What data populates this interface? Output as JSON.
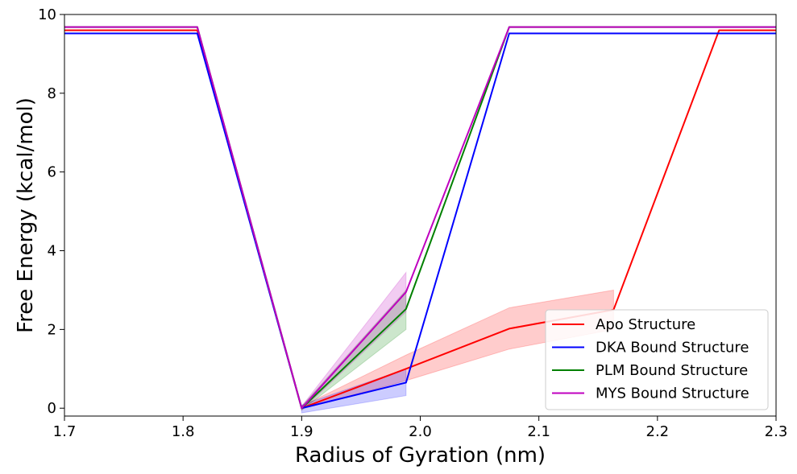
{
  "chart_data": {
    "type": "line",
    "title": "",
    "xlabel": "Radius of Gyration (nm)",
    "ylabel": "Free Energy (kcal/mol)",
    "xlim": [
      1.7,
      2.3
    ],
    "ylim": [
      -0.2,
      10
    ],
    "xticks": [
      1.7,
      1.8,
      1.9,
      2.0,
      2.1,
      2.2,
      2.3
    ],
    "xtick_labels": [
      "1.7",
      "1.8",
      "1.9",
      "2.0",
      "2.1",
      "2.2",
      "2.3"
    ],
    "yticks": [
      0,
      2,
      4,
      6,
      8,
      10
    ],
    "ytick_labels": [
      "0",
      "2",
      "4",
      "6",
      "8",
      "10"
    ],
    "grid": false,
    "legend_position": "lower-right",
    "series": [
      {
        "name": "Apo Structure",
        "color": "#ff0000",
        "x": [
          1.7,
          1.812,
          1.9,
          1.988,
          2.075,
          2.163,
          2.252,
          2.3
        ],
        "y": [
          9.6,
          9.6,
          0.0,
          1.0,
          2.02,
          2.5,
          9.6,
          9.6
        ],
        "band_x": [
          1.9,
          1.988,
          2.075,
          2.163
        ],
        "band_lower": [
          -0.02,
          0.7,
          1.5,
          2.0
        ],
        "band_upper": [
          0.05,
          1.35,
          2.55,
          3.0
        ]
      },
      {
        "name": "DKA Bound Structure",
        "color": "#0000ff",
        "x": [
          1.7,
          1.812,
          1.9,
          1.988,
          2.075,
          2.3
        ],
        "y": [
          9.52,
          9.52,
          0.0,
          0.65,
          9.52,
          9.52
        ],
        "band_x": [
          1.9,
          1.988
        ],
        "band_lower": [
          -0.12,
          0.32
        ],
        "band_upper": [
          0.08,
          1.0
        ]
      },
      {
        "name": "PLM Bound Structure",
        "color": "#008000",
        "x": [
          1.7,
          1.812,
          1.9,
          1.988,
          2.075,
          2.3
        ],
        "y": [
          9.68,
          9.68,
          0.0,
          2.52,
          9.68,
          9.68
        ],
        "band_x": [
          1.9,
          1.988
        ],
        "band_lower": [
          -0.05,
          2.0
        ],
        "band_upper": [
          0.05,
          3.0
        ]
      },
      {
        "name": "MYS Bound Structure",
        "color": "#bf00bf",
        "x": [
          1.7,
          1.812,
          1.9,
          1.988,
          2.075,
          2.3
        ],
        "y": [
          9.68,
          9.68,
          0.0,
          2.95,
          9.68,
          9.68
        ],
        "band_x": [
          1.9,
          1.988
        ],
        "band_lower": [
          -0.05,
          2.45
        ],
        "band_upper": [
          0.05,
          3.45
        ]
      }
    ]
  }
}
